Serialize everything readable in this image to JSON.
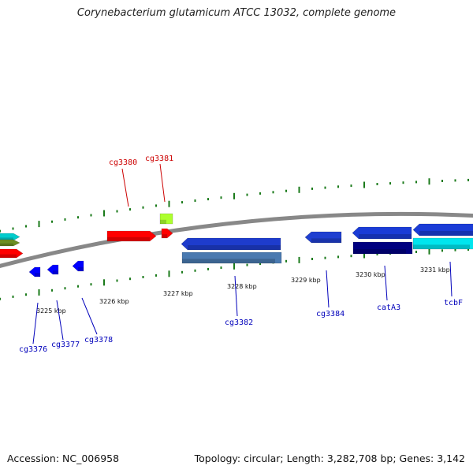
{
  "title": "Corynebacterium glutamicum ATCC 13032, complete genome",
  "footer": {
    "accession": "Accession: NC_006958",
    "topology": "Topology: circular; Length: 3,282,708 bp; Genes: 3,142"
  },
  "colors": {
    "backbone": "#888888",
    "tick": "#1a7a1a",
    "label_forward": "#cc0000",
    "label_reverse": "#0000bb"
  },
  "ticks": [
    {
      "label": "3225 kbp"
    },
    {
      "label": "3226 kbp"
    },
    {
      "label": "3227 kbp"
    },
    {
      "label": "3228 kbp"
    },
    {
      "label": "3229 kbp"
    },
    {
      "label": "3230 kbp"
    },
    {
      "label": "3231 kbp"
    }
  ],
  "gene_labels": {
    "forward": [
      {
        "name": "cg3380"
      },
      {
        "name": "cg3381"
      }
    ],
    "reverse": [
      {
        "name": "cg3376"
      },
      {
        "name": "cg3377"
      },
      {
        "name": "cg3378"
      },
      {
        "name": "cg3382"
      },
      {
        "name": "cg3384"
      },
      {
        "name": "catA3"
      },
      {
        "name": "tcbF"
      }
    ]
  },
  "features": [
    {
      "strand": "forward",
      "color": "#00cccc"
    },
    {
      "strand": "forward",
      "color": "#6b8e23"
    },
    {
      "strand": "forward",
      "color": "#ff0000"
    },
    {
      "strand": "forward",
      "color": "#ff0000"
    },
    {
      "strand": "forward",
      "color": "#adff2f"
    },
    {
      "strand": "forward",
      "color": "#ff0000"
    },
    {
      "strand": "reverse",
      "color": "#0000ff"
    },
    {
      "strand": "reverse",
      "color": "#0000ff"
    },
    {
      "strand": "reverse",
      "color": "#0000ff"
    },
    {
      "strand": "reverse",
      "color": "#1e3ccc"
    },
    {
      "strand": "reverse",
      "color": "#4a7ab0"
    },
    {
      "strand": "reverse",
      "color": "#1f3fd0"
    },
    {
      "strand": "reverse",
      "color": "#1a3cd6"
    },
    {
      "strand": "reverse",
      "color": "#000080"
    },
    {
      "strand": "reverse",
      "color": "#1a3cd6"
    },
    {
      "strand": "reverse",
      "color": "#00e5ee"
    }
  ]
}
